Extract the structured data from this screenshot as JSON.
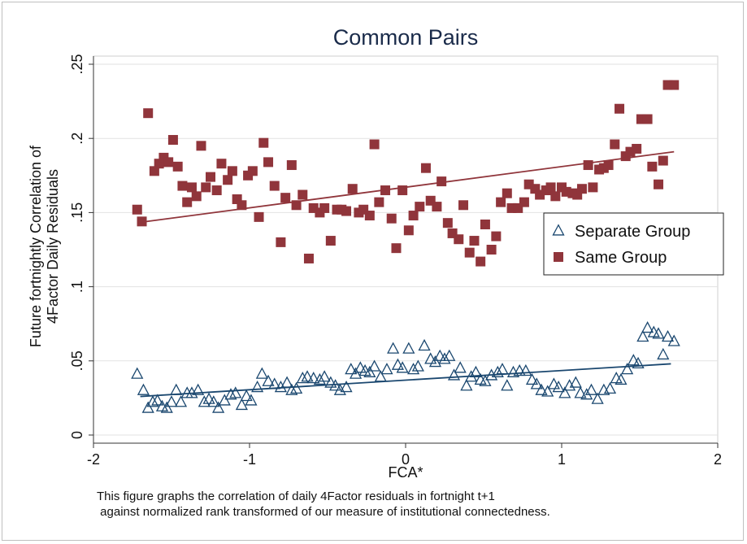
{
  "chart_data": {
    "type": "scatter",
    "title": "Common Pairs",
    "xlabel": "FCA*",
    "ylabel_lines": [
      "Future fortnightly Correlation of",
      "4Factor Daily Residuals"
    ],
    "xlim": [
      -2,
      2
    ],
    "ylim": [
      0,
      0.25
    ],
    "xticks": [
      {
        "value": -2,
        "label": "-2"
      },
      {
        "value": -1,
        "label": "-1"
      },
      {
        "value": 0,
        "label": "0"
      },
      {
        "value": 1,
        "label": "1"
      },
      {
        "value": 2,
        "label": "2"
      }
    ],
    "yticks": [
      {
        "value": 0,
        "label": "0"
      },
      {
        "value": 0.05,
        "label": ".05"
      },
      {
        "value": 0.1,
        "label": ".1"
      },
      {
        "value": 0.15,
        "label": ".15"
      },
      {
        "value": 0.2,
        "label": ".2"
      },
      {
        "value": 0.25,
        "label": ".25"
      }
    ],
    "grid": "horizontal",
    "legend_position": "right",
    "series": [
      {
        "name": "Separate Group",
        "marker": "triangle-hollow",
        "color": "#1a476f",
        "fit_line": [
          [
            -1.7,
            0.026
          ],
          [
            1.7,
            0.048
          ]
        ],
        "points": [
          [
            -1.72,
            0.041
          ],
          [
            -1.68,
            0.03
          ],
          [
            -1.65,
            0.018
          ],
          [
            -1.62,
            0.022
          ],
          [
            -1.59,
            0.023
          ],
          [
            -1.56,
            0.019
          ],
          [
            -1.53,
            0.018
          ],
          [
            -1.5,
            0.022
          ],
          [
            -1.47,
            0.03
          ],
          [
            -1.44,
            0.022
          ],
          [
            -1.4,
            0.028
          ],
          [
            -1.37,
            0.028
          ],
          [
            -1.33,
            0.03
          ],
          [
            -1.29,
            0.022
          ],
          [
            -1.26,
            0.024
          ],
          [
            -1.23,
            0.022
          ],
          [
            -1.2,
            0.018
          ],
          [
            -1.16,
            0.023
          ],
          [
            -1.12,
            0.027
          ],
          [
            -1.09,
            0.028
          ],
          [
            -1.05,
            0.02
          ],
          [
            -1.02,
            0.026
          ],
          [
            -0.99,
            0.023
          ],
          [
            -0.95,
            0.032
          ],
          [
            -0.92,
            0.041
          ],
          [
            -0.88,
            0.036
          ],
          [
            -0.84,
            0.034
          ],
          [
            -0.8,
            0.032
          ],
          [
            -0.76,
            0.035
          ],
          [
            -0.73,
            0.03
          ],
          [
            -0.7,
            0.031
          ],
          [
            -0.66,
            0.038
          ],
          [
            -0.63,
            0.039
          ],
          [
            -0.59,
            0.038
          ],
          [
            -0.55,
            0.037
          ],
          [
            -0.52,
            0.039
          ],
          [
            -0.48,
            0.035
          ],
          [
            -0.45,
            0.033
          ],
          [
            -0.42,
            0.03
          ],
          [
            -0.38,
            0.032
          ],
          [
            -0.35,
            0.044
          ],
          [
            -0.32,
            0.041
          ],
          [
            -0.29,
            0.045
          ],
          [
            -0.26,
            0.043
          ],
          [
            -0.23,
            0.042
          ],
          [
            -0.2,
            0.046
          ],
          [
            -0.16,
            0.039
          ],
          [
            -0.12,
            0.044
          ],
          [
            -0.08,
            0.058
          ],
          [
            -0.05,
            0.047
          ],
          [
            -0.02,
            0.045
          ],
          [
            0.02,
            0.058
          ],
          [
            0.05,
            0.044
          ],
          [
            0.08,
            0.046
          ],
          [
            0.12,
            0.06
          ],
          [
            0.16,
            0.051
          ],
          [
            0.19,
            0.049
          ],
          [
            0.22,
            0.053
          ],
          [
            0.25,
            0.051
          ],
          [
            0.28,
            0.053
          ],
          [
            0.31,
            0.04
          ],
          [
            0.35,
            0.045
          ],
          [
            0.39,
            0.033
          ],
          [
            0.42,
            0.039
          ],
          [
            0.45,
            0.042
          ],
          [
            0.48,
            0.037
          ],
          [
            0.51,
            0.036
          ],
          [
            0.55,
            0.04
          ],
          [
            0.59,
            0.042
          ],
          [
            0.62,
            0.044
          ],
          [
            0.65,
            0.033
          ],
          [
            0.69,
            0.042
          ],
          [
            0.73,
            0.043
          ],
          [
            0.77,
            0.043
          ],
          [
            0.81,
            0.037
          ],
          [
            0.84,
            0.034
          ],
          [
            0.87,
            0.03
          ],
          [
            0.91,
            0.029
          ],
          [
            0.95,
            0.034
          ],
          [
            0.98,
            0.032
          ],
          [
            1.02,
            0.028
          ],
          [
            1.05,
            0.033
          ],
          [
            1.09,
            0.035
          ],
          [
            1.12,
            0.028
          ],
          [
            1.16,
            0.027
          ],
          [
            1.19,
            0.03
          ],
          [
            1.23,
            0.024
          ],
          [
            1.27,
            0.03
          ],
          [
            1.31,
            0.031
          ],
          [
            1.35,
            0.038
          ],
          [
            1.38,
            0.037
          ],
          [
            1.42,
            0.044
          ],
          [
            1.46,
            0.05
          ],
          [
            1.49,
            0.048
          ],
          [
            1.52,
            0.066
          ],
          [
            1.55,
            0.072
          ],
          [
            1.59,
            0.069
          ],
          [
            1.62,
            0.068
          ],
          [
            1.65,
            0.054
          ],
          [
            1.68,
            0.066
          ],
          [
            1.72,
            0.063
          ]
        ]
      },
      {
        "name": "Same Group",
        "marker": "square-filled",
        "color": "#90353b",
        "fit_line": [
          [
            -1.66,
            0.144
          ],
          [
            1.72,
            0.191
          ]
        ],
        "points": [
          [
            -1.72,
            0.152
          ],
          [
            -1.69,
            0.144
          ],
          [
            -1.65,
            0.217
          ],
          [
            -1.61,
            0.178
          ],
          [
            -1.58,
            0.183
          ],
          [
            -1.55,
            0.187
          ],
          [
            -1.52,
            0.184
          ],
          [
            -1.49,
            0.199
          ],
          [
            -1.46,
            0.181
          ],
          [
            -1.43,
            0.168
          ],
          [
            -1.4,
            0.157
          ],
          [
            -1.37,
            0.167
          ],
          [
            -1.34,
            0.161
          ],
          [
            -1.31,
            0.195
          ],
          [
            -1.28,
            0.167
          ],
          [
            -1.25,
            0.174
          ],
          [
            -1.21,
            0.165
          ],
          [
            -1.18,
            0.183
          ],
          [
            -1.14,
            0.172
          ],
          [
            -1.11,
            0.178
          ],
          [
            -1.08,
            0.159
          ],
          [
            -1.05,
            0.155
          ],
          [
            -1.01,
            0.175
          ],
          [
            -0.98,
            0.178
          ],
          [
            -0.94,
            0.147
          ],
          [
            -0.91,
            0.197
          ],
          [
            -0.88,
            0.184
          ],
          [
            -0.84,
            0.168
          ],
          [
            -0.8,
            0.13
          ],
          [
            -0.77,
            0.16
          ],
          [
            -0.73,
            0.182
          ],
          [
            -0.7,
            0.155
          ],
          [
            -0.66,
            0.162
          ],
          [
            -0.62,
            0.119
          ],
          [
            -0.59,
            0.153
          ],
          [
            -0.55,
            0.15
          ],
          [
            -0.52,
            0.153
          ],
          [
            -0.48,
            0.131
          ],
          [
            -0.44,
            0.152
          ],
          [
            -0.41,
            0.152
          ],
          [
            -0.38,
            0.151
          ],
          [
            -0.34,
            0.166
          ],
          [
            -0.3,
            0.15
          ],
          [
            -0.27,
            0.152
          ],
          [
            -0.23,
            0.148
          ],
          [
            -0.2,
            0.196
          ],
          [
            -0.17,
            0.157
          ],
          [
            -0.13,
            0.165
          ],
          [
            -0.09,
            0.146
          ],
          [
            -0.06,
            0.126
          ],
          [
            -0.02,
            0.165
          ],
          [
            0.02,
            0.138
          ],
          [
            0.05,
            0.148
          ],
          [
            0.09,
            0.154
          ],
          [
            0.13,
            0.18
          ],
          [
            0.16,
            0.158
          ],
          [
            0.2,
            0.154
          ],
          [
            0.23,
            0.171
          ],
          [
            0.27,
            0.143
          ],
          [
            0.3,
            0.136
          ],
          [
            0.34,
            0.132
          ],
          [
            0.37,
            0.155
          ],
          [
            0.41,
            0.123
          ],
          [
            0.44,
            0.131
          ],
          [
            0.48,
            0.117
          ],
          [
            0.51,
            0.142
          ],
          [
            0.55,
            0.125
          ],
          [
            0.58,
            0.134
          ],
          [
            0.61,
            0.157
          ],
          [
            0.65,
            0.163
          ],
          [
            0.68,
            0.153
          ],
          [
            0.72,
            0.153
          ],
          [
            0.76,
            0.157
          ],
          [
            0.79,
            0.169
          ],
          [
            0.83,
            0.166
          ],
          [
            0.86,
            0.162
          ],
          [
            0.9,
            0.165
          ],
          [
            0.93,
            0.167
          ],
          [
            0.96,
            0.161
          ],
          [
            1.0,
            0.167
          ],
          [
            1.03,
            0.164
          ],
          [
            1.07,
            0.163
          ],
          [
            1.1,
            0.162
          ],
          [
            1.13,
            0.166
          ],
          [
            1.17,
            0.182
          ],
          [
            1.2,
            0.167
          ],
          [
            1.24,
            0.179
          ],
          [
            1.27,
            0.18
          ],
          [
            1.3,
            0.182
          ],
          [
            1.34,
            0.196
          ],
          [
            1.37,
            0.22
          ],
          [
            1.41,
            0.188
          ],
          [
            1.44,
            0.191
          ],
          [
            1.48,
            0.193
          ],
          [
            1.51,
            0.213
          ],
          [
            1.55,
            0.213
          ],
          [
            1.58,
            0.181
          ],
          [
            1.62,
            0.169
          ],
          [
            1.65,
            0.185
          ],
          [
            1.68,
            0.236
          ],
          [
            1.72,
            0.236
          ]
        ]
      }
    ]
  },
  "notes": [
    "This figure graphs the correlation of daily 4Factor residuals in fortnight t+1",
    " against normalized rank transformed of our measure of institutional connectedness."
  ]
}
